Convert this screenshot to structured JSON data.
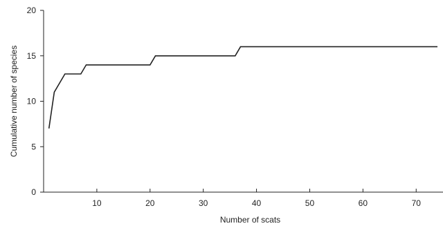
{
  "chart_data": {
    "type": "line",
    "title": "",
    "xlabel": "Number of scats",
    "ylabel": "Cumulative number of species",
    "xlim": [
      0,
      74
    ],
    "ylim": [
      0,
      20
    ],
    "x_ticks": [
      10,
      20,
      30,
      40,
      50,
      60,
      70
    ],
    "y_ticks": [
      0,
      5,
      10,
      15,
      20
    ],
    "grid": false,
    "line_color": "#222222",
    "series": [
      {
        "x": [
          1,
          2,
          4,
          7,
          8,
          20,
          21,
          36,
          37,
          74
        ],
        "y": [
          7,
          11,
          13,
          13,
          14,
          14,
          15,
          15,
          16,
          16
        ]
      }
    ]
  }
}
